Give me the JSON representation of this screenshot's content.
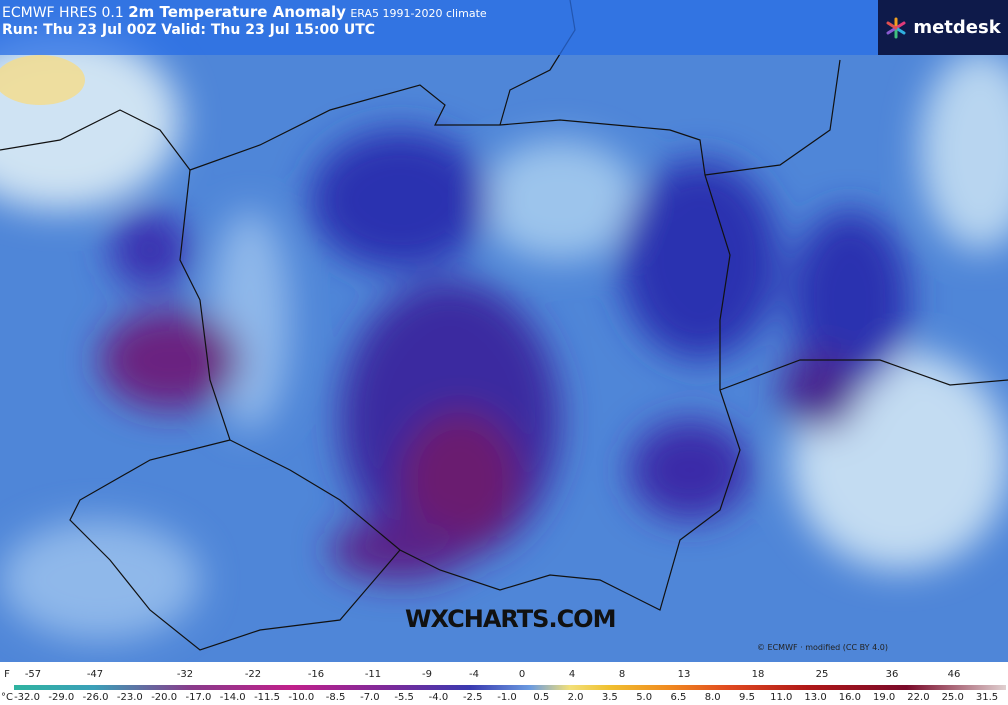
{
  "header": {
    "model": "ECMWF HRES 0.1",
    "parameter": "2m Temperature Anomaly",
    "climate": "ERA5 1991-2020 climate",
    "run": "Run: Thu 23 Jul 00Z Valid: Thu 23 Jul 15:00 UTC"
  },
  "logo": "metdesk",
  "watermark": "WXCHARTS.COM",
  "credit": "© ECMWF · modified (CC BY 4.0)",
  "colorbar": {
    "f_unit": "F",
    "f_labels": [
      "-57",
      "-47",
      "-32",
      "-22",
      "-16",
      "-11",
      "-9",
      "-4",
      "0",
      "4",
      "8",
      "13",
      "18",
      "25",
      "36",
      "46"
    ],
    "c_unit": "°C",
    "c_labels": [
      "-32.0",
      "-29.0",
      "-26.0",
      "-23.0",
      "-20.0",
      "-17.0",
      "-14.0",
      "-11.5",
      "-10.0",
      "-8.5",
      "-7.0",
      "-5.5",
      "-4.0",
      "-2.5",
      "-1.0",
      "0.5",
      "2.0",
      "3.5",
      "5.0",
      "6.5",
      "8.0",
      "9.5",
      "11.0",
      "13.0",
      "16.0",
      "19.0",
      "22.0",
      "25.0",
      "31.5"
    ]
  }
}
